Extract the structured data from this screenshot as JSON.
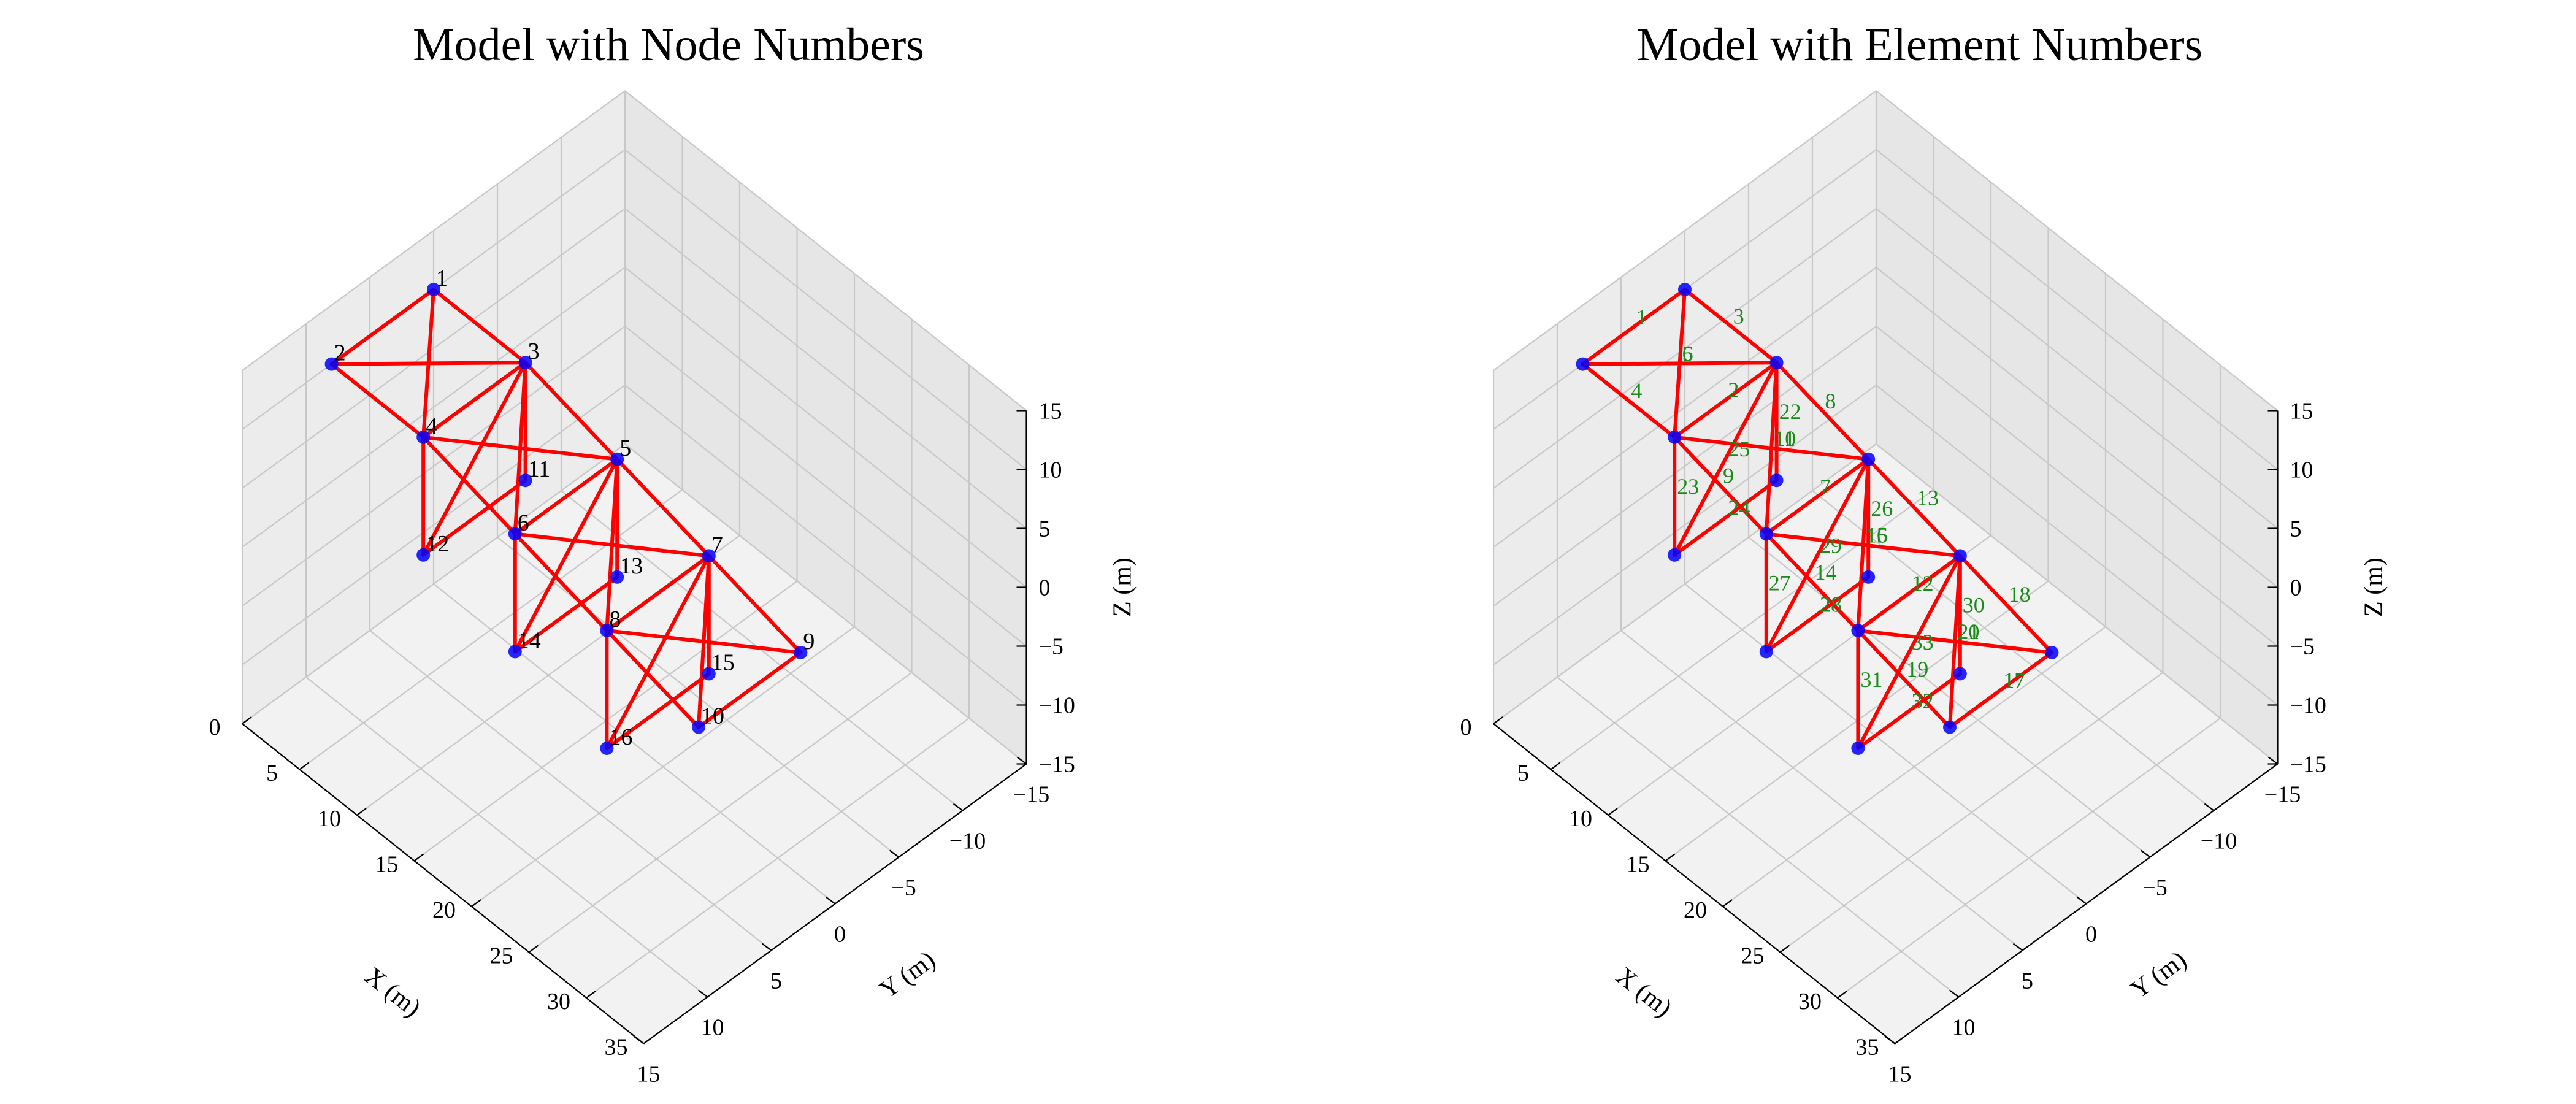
{
  "chart_data": [
    {
      "type": "3d-truss",
      "title": "Model with Node Numbers",
      "xlabel": "X (m)",
      "ylabel": "Y (m)",
      "zlabel": "Z (m)",
      "xlim": [
        0,
        35
      ],
      "ylim": [
        -15,
        15
      ],
      "zlim": [
        -15,
        15
      ],
      "xticks": [
        "0",
        "5",
        "10",
        "15",
        "20",
        "25",
        "30",
        "35"
      ],
      "yticks": [
        "−15",
        "−10",
        "−5",
        "0",
        "5",
        "10",
        "15"
      ],
      "zticks": [
        "−15",
        "−10",
        "−5",
        "0",
        "5",
        "10",
        "15"
      ],
      "grid": true,
      "member_color": "#ff0000",
      "node_color": "#0000ff",
      "labels": "nodes"
    },
    {
      "type": "3d-truss",
      "title": "Model with Element Numbers",
      "xlabel": "X (m)",
      "ylabel": "Y (m)",
      "zlabel": "Z (m)",
      "xlim": [
        0,
        35
      ],
      "ylim": [
        -15,
        15
      ],
      "zlim": [
        -15,
        15
      ],
      "xticks": [
        "0",
        "5",
        "10",
        "15",
        "20",
        "25",
        "30",
        "35"
      ],
      "yticks": [
        "−15",
        "−10",
        "−5",
        "0",
        "5",
        "10",
        "15"
      ],
      "zticks": [
        "−15",
        "−10",
        "−5",
        "0",
        "5",
        "10",
        "15"
      ],
      "grid": true,
      "member_color": "#ff0000",
      "node_color": "#0000ff",
      "element_label_color": "#1a8a1a",
      "labels": "elements"
    }
  ],
  "model": {
    "nodes": [
      {
        "id": "1",
        "x": 0,
        "y": 0,
        "z": 10
      },
      {
        "id": "2",
        "x": 0,
        "y": 8,
        "z": 10
      },
      {
        "id": "3",
        "x": 8,
        "y": 0,
        "z": 10
      },
      {
        "id": "4",
        "x": 8,
        "y": 8,
        "z": 10
      },
      {
        "id": "5",
        "x": 16,
        "y": 0,
        "z": 8
      },
      {
        "id": "6",
        "x": 16,
        "y": 8,
        "z": 8
      },
      {
        "id": "7",
        "x": 24,
        "y": 0,
        "z": 6
      },
      {
        "id": "8",
        "x": 24,
        "y": 8,
        "z": 6
      },
      {
        "id": "9",
        "x": 32,
        "y": 0,
        "z": 4
      },
      {
        "id": "10",
        "x": 32,
        "y": 8,
        "z": 4
      },
      {
        "id": "11",
        "x": 8,
        "y": 0,
        "z": 0
      },
      {
        "id": "12",
        "x": 8,
        "y": 8,
        "z": 0
      },
      {
        "id": "13",
        "x": 16,
        "y": 0,
        "z": -2
      },
      {
        "id": "14",
        "x": 16,
        "y": 8,
        "z": -2
      },
      {
        "id": "15",
        "x": 24,
        "y": 0,
        "z": -4
      },
      {
        "id": "16",
        "x": 24,
        "y": 8,
        "z": -4
      }
    ],
    "elements": [
      {
        "id": "1",
        "n": [
          "1",
          "2"
        ]
      },
      {
        "id": "2",
        "n": [
          "3",
          "4"
        ]
      },
      {
        "id": "3",
        "n": [
          "1",
          "3"
        ]
      },
      {
        "id": "4",
        "n": [
          "2",
          "4"
        ]
      },
      {
        "id": "5",
        "n": [
          "1",
          "4"
        ]
      },
      {
        "id": "6",
        "n": [
          "2",
          "3"
        ]
      },
      {
        "id": "7",
        "n": [
          "5",
          "6"
        ]
      },
      {
        "id": "8",
        "n": [
          "3",
          "5"
        ]
      },
      {
        "id": "9",
        "n": [
          "4",
          "6"
        ]
      },
      {
        "id": "10",
        "n": [
          "3",
          "6"
        ]
      },
      {
        "id": "11",
        "n": [
          "4",
          "5"
        ]
      },
      {
        "id": "12",
        "n": [
          "7",
          "8"
        ]
      },
      {
        "id": "13",
        "n": [
          "5",
          "7"
        ]
      },
      {
        "id": "14",
        "n": [
          "6",
          "8"
        ]
      },
      {
        "id": "15",
        "n": [
          "5",
          "8"
        ]
      },
      {
        "id": "16",
        "n": [
          "6",
          "7"
        ]
      },
      {
        "id": "17",
        "n": [
          "9",
          "10"
        ]
      },
      {
        "id": "18",
        "n": [
          "7",
          "9"
        ]
      },
      {
        "id": "19",
        "n": [
          "8",
          "10"
        ]
      },
      {
        "id": "20",
        "n": [
          "7",
          "10"
        ]
      },
      {
        "id": "21",
        "n": [
          "8",
          "9"
        ]
      },
      {
        "id": "22",
        "n": [
          "3",
          "11"
        ]
      },
      {
        "id": "23",
        "n": [
          "4",
          "12"
        ]
      },
      {
        "id": "24",
        "n": [
          "11",
          "12"
        ]
      },
      {
        "id": "25",
        "n": [
          "3",
          "12"
        ]
      },
      {
        "id": "26",
        "n": [
          "5",
          "13"
        ]
      },
      {
        "id": "27",
        "n": [
          "6",
          "14"
        ]
      },
      {
        "id": "28",
        "n": [
          "13",
          "14"
        ]
      },
      {
        "id": "29",
        "n": [
          "5",
          "14"
        ]
      },
      {
        "id": "30",
        "n": [
          "7",
          "15"
        ]
      },
      {
        "id": "31",
        "n": [
          "8",
          "16"
        ]
      },
      {
        "id": "32",
        "n": [
          "15",
          "16"
        ]
      },
      {
        "id": "33",
        "n": [
          "7",
          "16"
        ]
      }
    ]
  }
}
